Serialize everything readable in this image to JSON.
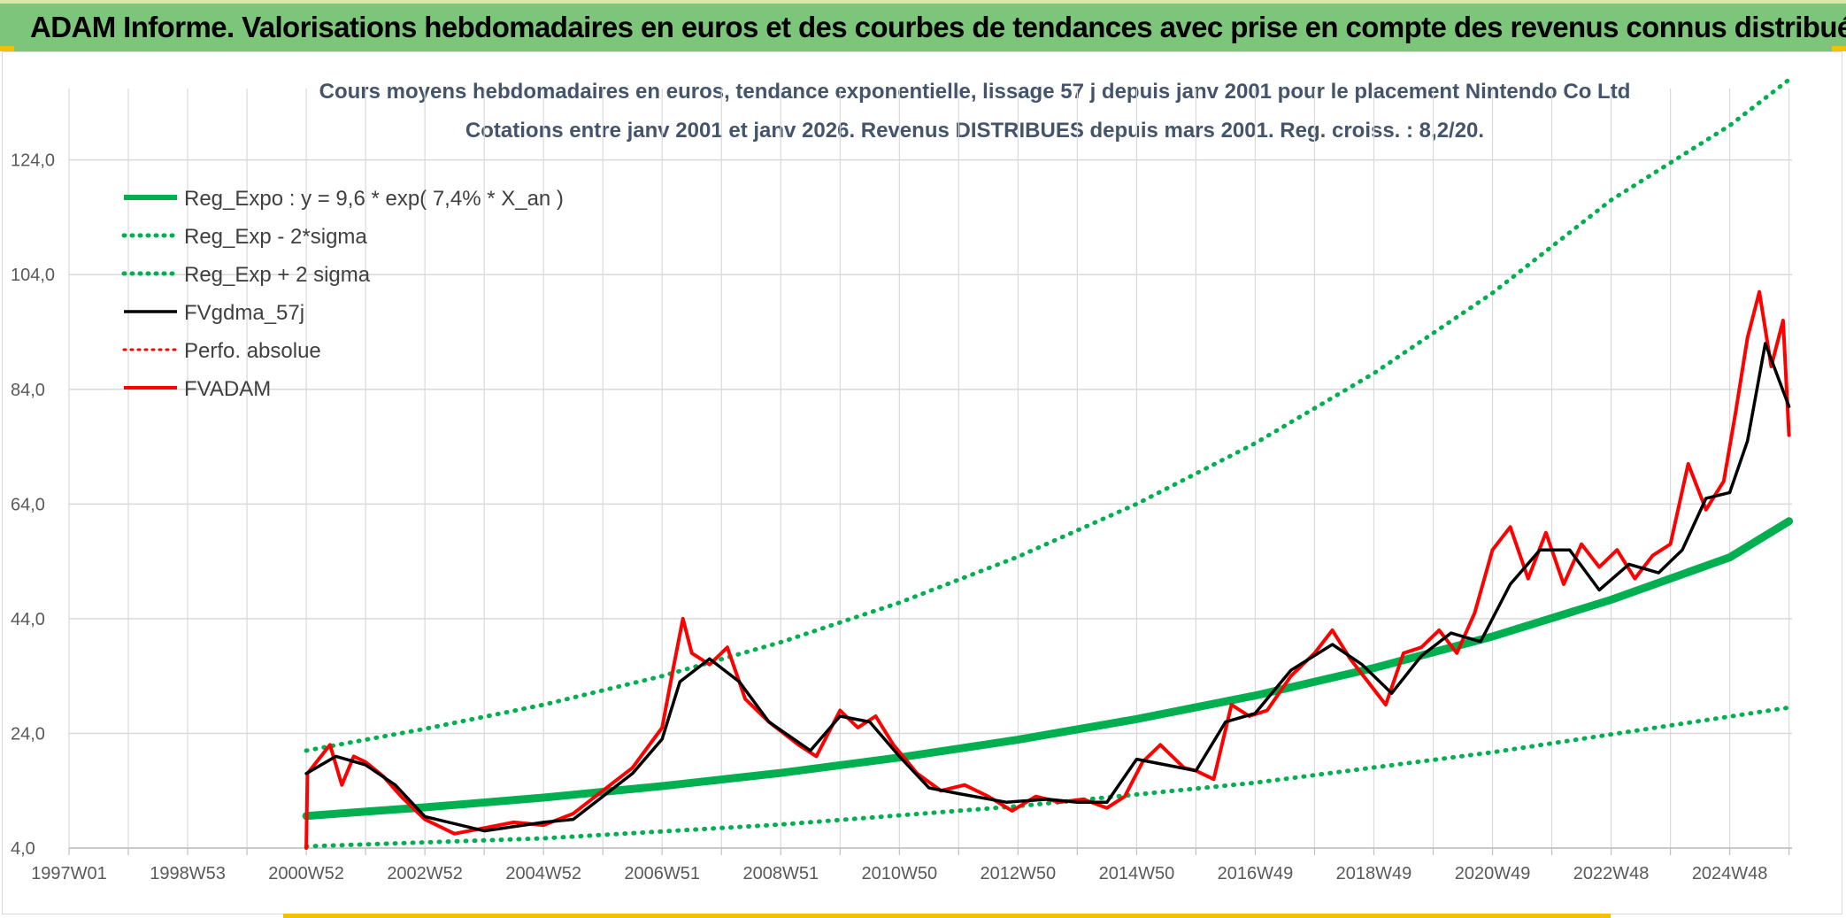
{
  "header": {
    "title": "ADAM Informe. Valorisations hebdomadaires en euros et des courbes de tendances avec prise en compte des revenus connus distribués"
  },
  "chart_data": {
    "type": "line",
    "title": "Cours moyens hebdomadaires en euros, tendance exponentielle, lissage 57 j depuis janv 2001 pour le placement Nintendo Co Ltd",
    "subtitle": "Cotations entre janv 2001 et janv 2026. Revenus DISTRIBUES depuis mars 2001. Reg. croiss. : 8,2/20.",
    "ylim": [
      4,
      138
    ],
    "y_ticks": [
      "4,0",
      "24,0",
      "44,0",
      "64,0",
      "84,0",
      "104,0",
      "124,0"
    ],
    "x_ticks": [
      "1997W01",
      "1998W53",
      "2000W52",
      "2002W52",
      "2004W52",
      "2006W51",
      "2008W51",
      "2010W50",
      "2012W50",
      "2014W50",
      "2016W49",
      "2018W49",
      "2020W49",
      "2022W48",
      "2024W48"
    ],
    "x_range_years": [
      1997.0,
      2026.05
    ],
    "grid": true,
    "legend_position": "top-left",
    "colors": {
      "trend": "#00b050",
      "smoothed": "#000000",
      "price": "#ff0000",
      "grid": "#d9d9d9"
    },
    "series": [
      {
        "name": "Reg_Expo : y = 9,6 * exp( 7,4% *  X_an )",
        "style": "solid",
        "color": "#00b050",
        "x": [
          2001.0,
          2003.0,
          2005.0,
          2007.0,
          2009.0,
          2011.0,
          2013.0,
          2015.0,
          2017.0,
          2019.0,
          2021.0,
          2023.0,
          2025.0,
          2026.0
        ],
        "values": [
          9.6,
          11.1,
          12.8,
          14.8,
          17.1,
          19.8,
          22.9,
          26.5,
          30.6,
          35.4,
          40.9,
          47.3,
          54.7,
          61.0
        ]
      },
      {
        "name": "Reg_Exp - 2*sigma",
        "style": "dotted",
        "color": "#00b050",
        "x": [
          2001.0,
          2005.0,
          2009.0,
          2013.0,
          2017.0,
          2021.0,
          2026.0
        ],
        "values": [
          4.3,
          5.7,
          8.1,
          11.3,
          15.4,
          20.7,
          28.5
        ]
      },
      {
        "name": "Reg_Exp + 2 sigma",
        "style": "dotted",
        "color": "#00b050",
        "x": [
          2001.0,
          2003.0,
          2005.0,
          2007.0,
          2009.0,
          2011.0,
          2013.0,
          2015.0,
          2017.0,
          2019.0,
          2021.0,
          2023.0,
          2025.0,
          2026.0
        ],
        "values": [
          21.0,
          24.8,
          29.0,
          34.0,
          39.9,
          46.8,
          54.8,
          64.0,
          74.6,
          86.8,
          100.8,
          117.0,
          130.0,
          138.0
        ]
      },
      {
        "name": "FVgdma_57j",
        "style": "solid",
        "color": "#000000",
        "x": [
          2001.0,
          2001.5,
          2002.0,
          2002.5,
          2003.0,
          2004.0,
          2005.0,
          2005.5,
          2006.0,
          2006.5,
          2007.0,
          2007.3,
          2007.8,
          2008.3,
          2008.8,
          2009.5,
          2010.0,
          2010.5,
          2011.0,
          2011.5,
          2012.0,
          2012.8,
          2013.5,
          2014.0,
          2014.5,
          2015.0,
          2015.5,
          2016.0,
          2016.5,
          2017.0,
          2017.6,
          2018.3,
          2018.8,
          2019.3,
          2019.8,
          2020.3,
          2020.8,
          2021.3,
          2021.8,
          2022.3,
          2022.8,
          2023.3,
          2023.8,
          2024.2,
          2024.6,
          2025.0,
          2025.3,
          2025.6,
          2026.0
        ],
        "values": [
          17.0,
          20.0,
          18.5,
          15.0,
          9.5,
          7.0,
          8.5,
          9.0,
          13.0,
          17.0,
          23.0,
          33.0,
          37.0,
          33.0,
          26.0,
          21.0,
          27.0,
          26.0,
          20.0,
          14.5,
          13.5,
          12.0,
          12.5,
          12.0,
          12.0,
          19.5,
          18.5,
          17.5,
          26.0,
          27.5,
          35.0,
          39.5,
          36.0,
          31.0,
          37.5,
          41.5,
          40.0,
          50.0,
          56.0,
          56.0,
          49.0,
          53.5,
          52.0,
          56.0,
          65.0,
          66.0,
          75.0,
          92.0,
          81.0
        ]
      },
      {
        "name": "Perfo. absolue",
        "style": "dotted",
        "color": "#ff0000",
        "x": [
          2001.0,
          2002.0,
          2003.0,
          2005.0,
          2007.0,
          2008.5,
          2010.5,
          2012.5,
          2015.0,
          2017.0,
          2019.0,
          2021.0,
          2023.0,
          2025.5,
          2026.0
        ],
        "values": [
          17.0,
          18.5,
          9.5,
          8.5,
          23.0,
          33.0,
          26.0,
          13.5,
          19.5,
          27.5,
          31.0,
          50.0,
          53.5,
          95.0,
          77.0
        ]
      },
      {
        "name": "FVADAM",
        "style": "solid",
        "color": "#ff0000",
        "x": [
          2001.0,
          2001.02,
          2001.4,
          2001.6,
          2001.8,
          2002.0,
          2002.3,
          2002.6,
          2003.0,
          2003.5,
          2004.0,
          2004.5,
          2005.0,
          2005.5,
          2006.0,
          2006.5,
          2007.0,
          2007.2,
          2007.35,
          2007.5,
          2007.8,
          2008.1,
          2008.4,
          2008.8,
          2009.3,
          2009.6,
          2010.0,
          2010.3,
          2010.6,
          2010.9,
          2011.3,
          2011.7,
          2012.1,
          2012.5,
          2012.9,
          2013.3,
          2013.7,
          2014.1,
          2014.5,
          2014.8,
          2015.1,
          2015.4,
          2015.8,
          2016.0,
          2016.3,
          2016.6,
          2016.9,
          2017.2,
          2017.6,
          2018.0,
          2018.3,
          2018.6,
          2018.9,
          2019.2,
          2019.5,
          2019.8,
          2020.1,
          2020.4,
          2020.7,
          2021.0,
          2021.3,
          2021.6,
          2021.9,
          2022.2,
          2022.5,
          2022.8,
          2023.1,
          2023.4,
          2023.7,
          2024.0,
          2024.3,
          2024.6,
          2024.9,
          2025.1,
          2025.3,
          2025.5,
          2025.7,
          2025.9,
          2026.0
        ],
        "values": [
          4.0,
          17.0,
          22.0,
          15.0,
          20.0,
          19.0,
          16.5,
          13.0,
          9.0,
          6.5,
          7.5,
          8.5,
          8.0,
          10.0,
          14.0,
          18.0,
          25.0,
          36.0,
          44.0,
          38.0,
          36.0,
          39.0,
          30.0,
          26.0,
          22.0,
          20.0,
          28.0,
          25.0,
          27.0,
          22.0,
          17.0,
          14.0,
          15.0,
          13.0,
          10.5,
          13.0,
          12.0,
          12.5,
          11.0,
          13.0,
          19.0,
          22.0,
          18.0,
          17.5,
          16.0,
          29.0,
          27.0,
          28.0,
          34.0,
          38.0,
          42.0,
          37.0,
          33.0,
          29.0,
          38.0,
          39.0,
          42.0,
          38.0,
          45.0,
          56.0,
          60.0,
          51.0,
          59.0,
          50.0,
          57.0,
          53.0,
          56.0,
          51.0,
          55.0,
          57.0,
          71.0,
          63.0,
          68.0,
          80.0,
          93.0,
          101.0,
          88.0,
          96.0,
          76.0
        ]
      }
    ]
  }
}
